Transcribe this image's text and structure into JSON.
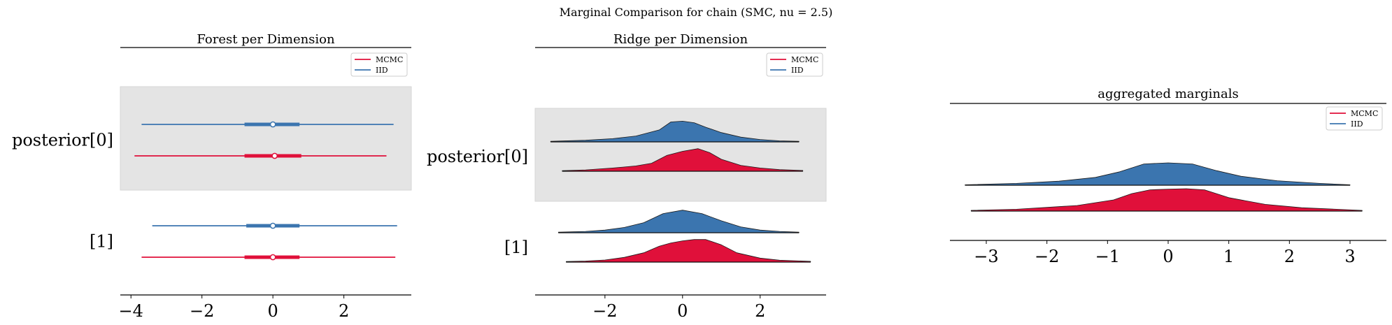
{
  "figure_title": "Marginal Comparison for chain (SMC, nu = 2.5)",
  "colors": {
    "mcmc": "#e0103a",
    "iid": "#3b75af",
    "band": "#e4e4e4"
  },
  "chart_data": [
    {
      "type": "forest",
      "title": "Forest per Dimension",
      "xlim": [
        -4.3,
        3.9
      ],
      "xticks": [
        -4,
        -2,
        0,
        2
      ],
      "xtick_labels": [
        "−4",
        "−2",
        "0",
        "2"
      ],
      "legend": {
        "placement": "top-right",
        "entries": [
          "MCMC",
          "IID"
        ]
      },
      "rows": [
        {
          "label": "posterior[0]",
          "shaded": true,
          "series": [
            {
              "name": "IID",
              "hdi_94": [
                -3.7,
                3.4
              ],
              "iqr": [
                -0.8,
                0.75
              ],
              "median": 0.0
            },
            {
              "name": "MCMC",
              "hdi_94": [
                -3.9,
                3.2
              ],
              "iqr": [
                -0.8,
                0.8
              ],
              "median": 0.05
            }
          ]
        },
        {
          "label": "[1]",
          "shaded": false,
          "series": [
            {
              "name": "IID",
              "hdi_94": [
                -3.4,
                3.5
              ],
              "iqr": [
                -0.75,
                0.75
              ],
              "median": 0.0
            },
            {
              "name": "MCMC",
              "hdi_94": [
                -3.7,
                3.45
              ],
              "iqr": [
                -0.8,
                0.75
              ],
              "median": 0.0
            }
          ]
        }
      ]
    },
    {
      "type": "ridge",
      "title": "Ridge per Dimension",
      "xlim": [
        -3.8,
        3.7
      ],
      "xticks": [
        -2,
        0,
        2
      ],
      "xtick_labels": [
        "−2",
        "0",
        "2"
      ],
      "legend": {
        "placement": "top-right",
        "entries": [
          "MCMC",
          "IID"
        ]
      },
      "rows": [
        {
          "label": "posterior[0]",
          "shaded": true,
          "series": [
            {
              "name": "IID",
              "x": [
                -3.4,
                -2.5,
                -1.8,
                -1.2,
                -0.6,
                -0.3,
                0.0,
                0.3,
                0.6,
                1.0,
                1.5,
                2.0,
                2.5,
                3.0
              ],
              "density": [
                0.02,
                0.06,
                0.12,
                0.22,
                0.45,
                0.75,
                0.78,
                0.72,
                0.55,
                0.35,
                0.18,
                0.09,
                0.04,
                0.02
              ]
            },
            {
              "name": "MCMC",
              "x": [
                -3.1,
                -2.5,
                -1.8,
                -1.2,
                -0.8,
                -0.4,
                0.0,
                0.4,
                0.7,
                1.0,
                1.5,
                2.0,
                2.5,
                3.1
              ],
              "density": [
                0.02,
                0.05,
                0.12,
                0.2,
                0.3,
                0.6,
                0.75,
                0.85,
                0.7,
                0.45,
                0.22,
                0.12,
                0.06,
                0.03
              ]
            }
          ]
        },
        {
          "label": "[1]",
          "shaded": false,
          "series": [
            {
              "name": "IID",
              "x": [
                -3.2,
                -2.5,
                -2.0,
                -1.5,
                -1.0,
                -0.5,
                0.0,
                0.5,
                1.0,
                1.5,
                2.0,
                2.5,
                3.0
              ],
              "density": [
                0.02,
                0.05,
                0.1,
                0.2,
                0.38,
                0.72,
                0.85,
                0.72,
                0.45,
                0.22,
                0.1,
                0.05,
                0.02
              ]
            },
            {
              "name": "MCMC",
              "x": [
                -3.0,
                -2.5,
                -2.0,
                -1.5,
                -1.0,
                -0.6,
                -0.3,
                0.0,
                0.3,
                0.6,
                1.0,
                1.4,
                2.0,
                2.5,
                3.3
              ],
              "density": [
                0.02,
                0.04,
                0.08,
                0.18,
                0.35,
                0.6,
                0.72,
                0.8,
                0.85,
                0.85,
                0.65,
                0.35,
                0.15,
                0.07,
                0.03
              ]
            }
          ]
        }
      ]
    },
    {
      "type": "ridge",
      "title": "aggregated marginals",
      "xlim": [
        -3.6,
        3.6
      ],
      "xticks": [
        -3,
        -2,
        -1,
        0,
        1,
        2,
        3
      ],
      "xtick_labels": [
        "−3",
        "−2",
        "−1",
        "0",
        "1",
        "2",
        "3"
      ],
      "legend": {
        "placement": "top-right",
        "entries": [
          "MCMC",
          "IID"
        ]
      },
      "rows": [
        {
          "label": "",
          "shaded": false,
          "series": [
            {
              "name": "IID",
              "x": [
                -3.35,
                -2.5,
                -1.8,
                -1.2,
                -0.8,
                -0.4,
                0.0,
                0.4,
                0.8,
                1.2,
                1.8,
                2.5,
                3.0
              ],
              "density": [
                0.02,
                0.08,
                0.18,
                0.35,
                0.6,
                0.95,
                1.0,
                0.95,
                0.65,
                0.4,
                0.2,
                0.08,
                0.02
              ]
            },
            {
              "name": "MCMC",
              "x": [
                -3.25,
                -2.5,
                -1.5,
                -0.9,
                -0.6,
                -0.3,
                0.0,
                0.3,
                0.6,
                1.0,
                1.6,
                2.2,
                3.2
              ],
              "density": [
                0.03,
                0.08,
                0.25,
                0.5,
                0.78,
                0.95,
                0.98,
                1.0,
                0.95,
                0.6,
                0.3,
                0.15,
                0.03
              ]
            }
          ]
        }
      ]
    }
  ]
}
